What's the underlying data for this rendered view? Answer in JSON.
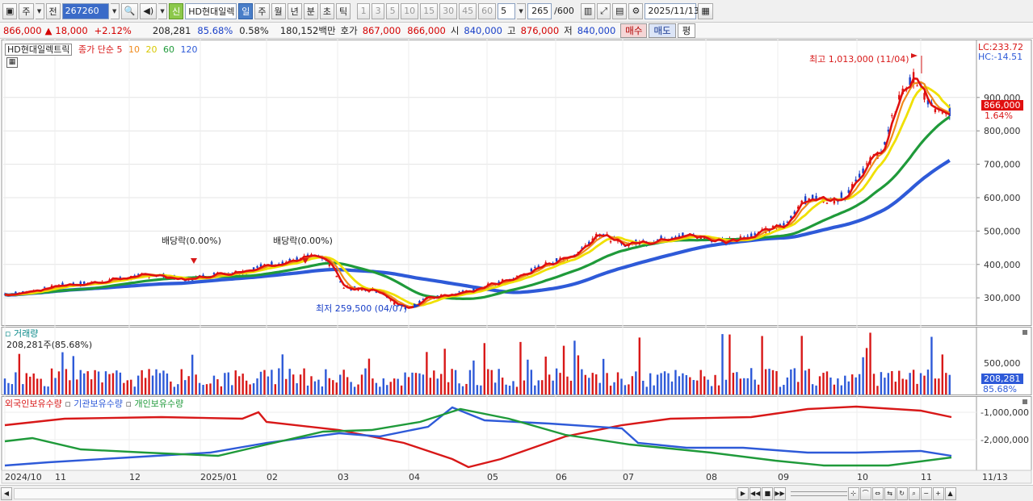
{
  "toolbar": {
    "period_select": "주",
    "prev_label": "전",
    "stock_code": "267260",
    "stock_name": "HD현대일렉",
    "credit_label": "신",
    "tf_day": "일",
    "tf_week": "주",
    "tf_month": "월",
    "tf_year": "년",
    "tf_minute": "분",
    "tf_second": "초",
    "tf_tick": "틱",
    "n1": "1",
    "n3": "3",
    "n5": "5",
    "n10": "10",
    "n15": "15",
    "n30": "30",
    "n45": "45",
    "n60": "60",
    "n_custom": "5",
    "bar_count": "265",
    "bar_total": "/600",
    "date": "2025/11/13"
  },
  "quote": {
    "price": "866,000",
    "change_sign": "▲",
    "change": "18,000",
    "change_pct": "+2.12%",
    "volume": "208,281",
    "vol_ratio": "85.68%",
    "turnover": "0.58%",
    "amount": "180,152백만",
    "bid_label": "호가",
    "ask": "867,000",
    "bid": "866,000",
    "open_label": "시",
    "open": "840,000",
    "high_label": "고",
    "high": "876,000",
    "low_label": "저",
    "low": "840,000",
    "buy_label": "매수",
    "sell_label": "매도",
    "avg_label": "평"
  },
  "price_panel": {
    "title": "HD현대일렉트릭",
    "ma_prefix": "종가 단순",
    "ma_periods": [
      "5",
      "10",
      "20",
      "60",
      "120"
    ],
    "ma_colors": [
      "#e01010",
      "#f08a1c",
      "#f0e000",
      "#1f9a3a",
      "#2e5ad8"
    ],
    "lc_label": "LC:233.72",
    "hc_label": "HC:-14.51",
    "last_price_label": "866,000",
    "last_pct_label": "1.64%",
    "high_annotation": "최고 1,013,000 (11/04)",
    "low_annotation": "최저 259,500 (04/07)",
    "dividend_labels": [
      "배당락(0.00%)",
      "배당락(0.00%)"
    ],
    "y_ticks": [
      "900,000",
      "800,000",
      "700,000",
      "600,000",
      "500,000",
      "400,000",
      "300,000"
    ]
  },
  "volume_panel": {
    "title": "거래량",
    "value_label": "208,281주(85.68%)",
    "y_tick": "500,000",
    "last_label": "208,281",
    "last_pct": "85.68%"
  },
  "holding_panel": {
    "foreign_label": "외국인보유수량",
    "inst_label": "기관보유수량",
    "indiv_label": "개인보유수량",
    "y_ticks": [
      "-1,000,000",
      "-2,000,000"
    ]
  },
  "x_axis": {
    "labels": [
      "2024/10",
      "11",
      "12",
      "2025/01",
      "02",
      "03",
      "04",
      "05",
      "06",
      "07",
      "08",
      "09",
      "10",
      "11"
    ],
    "end_label": "11/13"
  },
  "chart_data": {
    "type": "line",
    "title": "HD현대일렉트릭",
    "price_range": [
      240000,
      1030000
    ],
    "closing_price_path": [
      [
        0,
        310000
      ],
      [
        20,
        320000
      ],
      [
        40,
        340000
      ],
      [
        60,
        345000
      ],
      [
        80,
        360000
      ],
      [
        100,
        370000
      ],
      [
        120,
        355000
      ],
      [
        140,
        370000
      ],
      [
        160,
        380000
      ],
      [
        175,
        400000
      ],
      [
        190,
        410000
      ],
      [
        205,
        425000
      ],
      [
        215,
        410000
      ],
      [
        225,
        330000
      ],
      [
        240,
        325000
      ],
      [
        250,
        320000
      ],
      [
        260,
        280000
      ],
      [
        270,
        270000
      ],
      [
        280,
        300000
      ],
      [
        300,
        310000
      ],
      [
        320,
        335000
      ],
      [
        340,
        360000
      ],
      [
        360,
        400000
      ],
      [
        380,
        430000
      ],
      [
        395,
        495000
      ],
      [
        410,
        460000
      ],
      [
        430,
        470000
      ],
      [
        450,
        490000
      ],
      [
        470,
        475000
      ],
      [
        480,
        470000
      ],
      [
        500,
        490000
      ],
      [
        520,
        520000
      ],
      [
        530,
        590000
      ],
      [
        540,
        600000
      ],
      [
        550,
        590000
      ],
      [
        560,
        610000
      ],
      [
        570,
        680000
      ],
      [
        585,
        750000
      ],
      [
        595,
        900000
      ],
      [
        605,
        960000
      ],
      [
        615,
        880000
      ],
      [
        625,
        840000
      ],
      [
        630,
        866000
      ]
    ],
    "high": {
      "value": 1013000,
      "date": "11/04"
    },
    "low": {
      "value": 259500,
      "date": "04/07"
    },
    "series": [
      {
        "name": "종가 단순 5",
        "color": "#e01010"
      },
      {
        "name": "종가 단순 10",
        "color": "#f08a1c"
      },
      {
        "name": "종가 단순 20",
        "color": "#f0e000"
      },
      {
        "name": "종가 단순 60",
        "color": "#1f9a3a"
      },
      {
        "name": "종가 단순 120",
        "color": "#2e5ad8"
      }
    ]
  }
}
